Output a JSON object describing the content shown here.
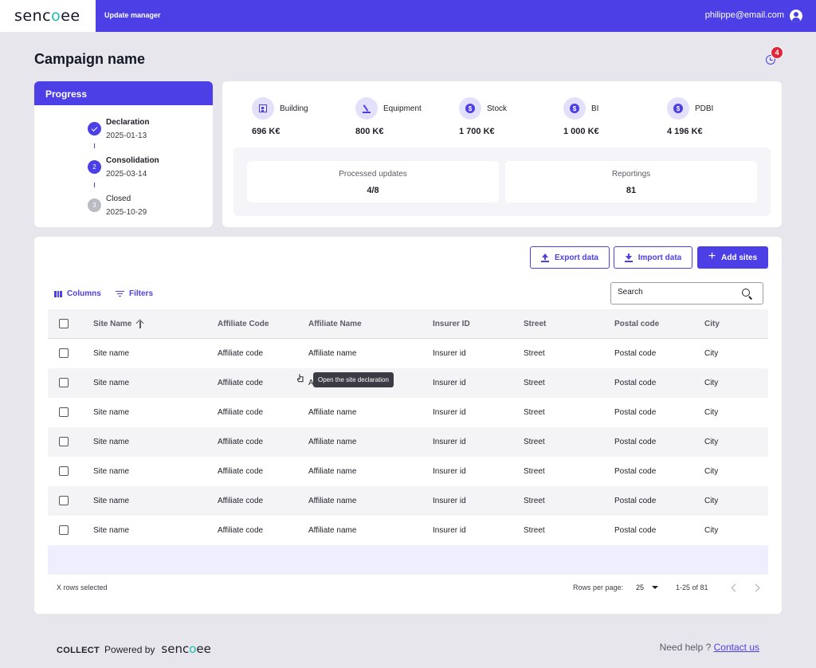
{
  "header": {
    "logo_prefix": "senc",
    "logo_accent": "o",
    "logo_suffix": "ee",
    "app_title": "Update manager",
    "user_email": "philippe@email.com"
  },
  "page": {
    "title": "Campaign name",
    "notifications_count": "4"
  },
  "progress": {
    "title": "Progress",
    "steps": [
      {
        "name": "Declaration",
        "date": "2025-01-13",
        "state": "done",
        "number": ""
      },
      {
        "name": "Consolidation",
        "date": "2025-03-14",
        "state": "active",
        "number": "2"
      },
      {
        "name": "Closed",
        "date": "2025-10-29",
        "state": "todo",
        "number": "3"
      }
    ]
  },
  "kpis": [
    {
      "label": "Building",
      "value": "696 K€",
      "icon": "building-icon"
    },
    {
      "label": "Equipment",
      "value": "800 K€",
      "icon": "equipment-icon"
    },
    {
      "label": "Stock",
      "value": "1 700 K€",
      "icon": "dollar-coin-icon"
    },
    {
      "label": "BI",
      "value": "1 000 K€",
      "icon": "dollar-coin-icon"
    },
    {
      "label": "PDBI",
      "value": "4 196 K€",
      "icon": "dollar-coin-icon"
    }
  ],
  "stats": [
    {
      "label": "Processed updates",
      "value": "4/8"
    },
    {
      "label": "Reportings",
      "value": "81"
    }
  ],
  "actions": {
    "export_label": "Export data",
    "import_label": "Import data",
    "add_label": "Add sites",
    "columns_label": "Columns",
    "filters_label": "Filters",
    "search_placeholder": "Search"
  },
  "table": {
    "columns": [
      "Site Name",
      "Affiliate Code",
      "Affiliate Name",
      "Insurer ID",
      "Street",
      "Postal code",
      "City"
    ],
    "rows": [
      [
        "Site name",
        "Affiliate code",
        "Affiliate name",
        "Insurer id",
        "Street",
        "Postal code",
        "City"
      ],
      [
        "Site name",
        "Affiliate code",
        "Affiliate name",
        "Insurer id",
        "Street",
        "Postal code",
        "City"
      ],
      [
        "Site name",
        "Affiliate code",
        "Affiliate name",
        "Insurer id",
        "Street",
        "Postal code",
        "City"
      ],
      [
        "Site name",
        "Affiliate code",
        "Affiliate name",
        "Insurer id",
        "Street",
        "Postal code",
        "City"
      ],
      [
        "Site name",
        "Affiliate code",
        "Affiliate name",
        "Insurer id",
        "Street",
        "Postal code",
        "City"
      ],
      [
        "Site name",
        "Affiliate code",
        "Affiliate name",
        "Insurer id",
        "Street",
        "Postal code",
        "City"
      ],
      [
        "Site name",
        "Affiliate code",
        "Affiliate name",
        "Insurer id",
        "Street",
        "Postal code",
        "City"
      ]
    ],
    "tooltip": "Open the site declaration",
    "selected_text": "X rows selected",
    "rows_per_page_label": "Rows per page:",
    "rows_per_page_value": "25",
    "range_label": "1-25 of 81"
  },
  "footer": {
    "product": "COLLECT",
    "powered_by": "Powered by",
    "help_text": "Need help ?",
    "contact_link": "Contact us"
  },
  "colors": {
    "primary": "#4c3fe6",
    "accent": "#1fbfae",
    "badge": "#e0263a"
  }
}
